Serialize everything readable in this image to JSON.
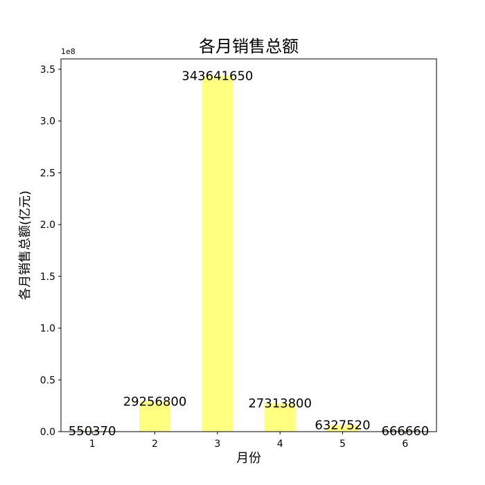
{
  "chart_data": {
    "type": "bar",
    "title": "各月销售总额",
    "xlabel": "月份",
    "ylabel": "各月销售总额(亿元)",
    "categories": [
      "1",
      "2",
      "3",
      "4",
      "5",
      "6"
    ],
    "values": [
      550370,
      29256800,
      343641650,
      27313800,
      6327520,
      666660
    ],
    "data_labels": [
      "550370",
      "29256800",
      "343641650",
      "27313800",
      "6327520",
      "666660"
    ],
    "ylim": [
      0,
      360000000
    ],
    "yticks": [
      0,
      50000000,
      100000000,
      150000000,
      200000000,
      250000000,
      300000000,
      350000000
    ],
    "ytick_labels": [
      "0.0",
      "0.5",
      "1.0",
      "1.5",
      "2.0",
      "2.5",
      "3.0",
      "3.5"
    ],
    "y_offset_label": "1e8",
    "bar_color": "#ffff80",
    "grid": false,
    "legend": "none"
  }
}
